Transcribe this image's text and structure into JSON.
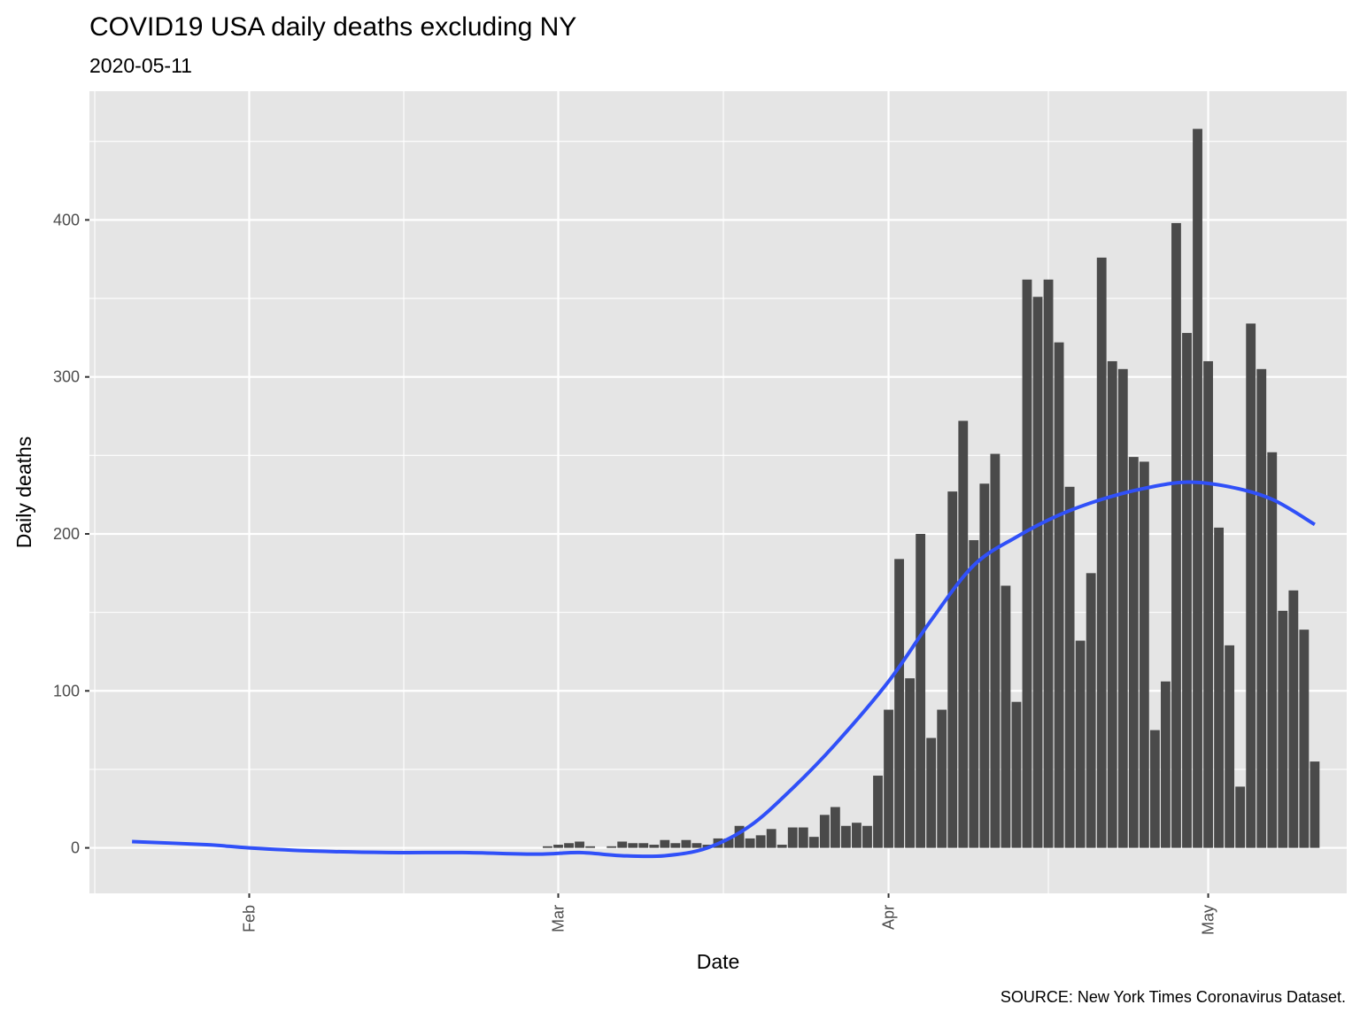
{
  "chart_data": {
    "type": "bar",
    "title": "COVID19 USA daily deaths excluding NY",
    "subtitle": "2020-05-11",
    "xlabel": "Date",
    "ylabel": "Daily deaths",
    "caption": "SOURCE: New York Times Coronavirus Dataset.",
    "x_ticks": [
      {
        "label": "Feb",
        "date": "2020-02-01"
      },
      {
        "label": "Mar",
        "date": "2020-03-01"
      },
      {
        "label": "Apr",
        "date": "2020-04-01"
      },
      {
        "label": "May",
        "date": "2020-05-01"
      }
    ],
    "y_ticks": [
      0,
      100,
      200,
      300,
      400
    ],
    "ylim": [
      -29,
      482
    ],
    "xlim": [
      "2020-01-17",
      "2020-05-14"
    ],
    "grid": true,
    "colors": {
      "panel": "#e5e5e5",
      "grid": "#ffffff",
      "bar": "#4a4a4a",
      "smooth": "#3050f8"
    },
    "series": [
      {
        "kind": "bar",
        "points": [
          {
            "x": "2020-02-29",
            "y": 1
          },
          {
            "x": "2020-03-01",
            "y": 2
          },
          {
            "x": "2020-03-02",
            "y": 3
          },
          {
            "x": "2020-03-03",
            "y": 4
          },
          {
            "x": "2020-03-04",
            "y": 1
          },
          {
            "x": "2020-03-05",
            "y": 0
          },
          {
            "x": "2020-03-06",
            "y": 1
          },
          {
            "x": "2020-03-07",
            "y": 4
          },
          {
            "x": "2020-03-08",
            "y": 3
          },
          {
            "x": "2020-03-09",
            "y": 3
          },
          {
            "x": "2020-03-10",
            "y": 2
          },
          {
            "x": "2020-03-11",
            "y": 5
          },
          {
            "x": "2020-03-12",
            "y": 3
          },
          {
            "x": "2020-03-13",
            "y": 5
          },
          {
            "x": "2020-03-14",
            "y": 3
          },
          {
            "x": "2020-03-15",
            "y": 2
          },
          {
            "x": "2020-03-16",
            "y": 6
          },
          {
            "x": "2020-03-17",
            "y": 6
          },
          {
            "x": "2020-03-18",
            "y": 14
          },
          {
            "x": "2020-03-19",
            "y": 6
          },
          {
            "x": "2020-03-20",
            "y": 8
          },
          {
            "x": "2020-03-21",
            "y": 12
          },
          {
            "x": "2020-03-22",
            "y": 2
          },
          {
            "x": "2020-03-23",
            "y": 13
          },
          {
            "x": "2020-03-24",
            "y": 13
          },
          {
            "x": "2020-03-25",
            "y": 7
          },
          {
            "x": "2020-03-26",
            "y": 21
          },
          {
            "x": "2020-03-27",
            "y": 26
          },
          {
            "x": "2020-03-28",
            "y": 14
          },
          {
            "x": "2020-03-29",
            "y": 16
          },
          {
            "x": "2020-03-30",
            "y": 14
          },
          {
            "x": "2020-03-31",
            "y": 46
          },
          {
            "x": "2020-04-01",
            "y": 88
          },
          {
            "x": "2020-04-02",
            "y": 184
          },
          {
            "x": "2020-04-03",
            "y": 108
          },
          {
            "x": "2020-04-04",
            "y": 200
          },
          {
            "x": "2020-04-05",
            "y": 70
          },
          {
            "x": "2020-04-06",
            "y": 88
          },
          {
            "x": "2020-04-07",
            "y": 227
          },
          {
            "x": "2020-04-08",
            "y": 272
          },
          {
            "x": "2020-04-09",
            "y": 196
          },
          {
            "x": "2020-04-10",
            "y": 232
          },
          {
            "x": "2020-04-11",
            "y": 251
          },
          {
            "x": "2020-04-12",
            "y": 167
          },
          {
            "x": "2020-04-13",
            "y": 93
          },
          {
            "x": "2020-04-14",
            "y": 362
          },
          {
            "x": "2020-04-15",
            "y": 351
          },
          {
            "x": "2020-04-16",
            "y": 362
          },
          {
            "x": "2020-04-17",
            "y": 322
          },
          {
            "x": "2020-04-18",
            "y": 230
          },
          {
            "x": "2020-04-19",
            "y": 132
          },
          {
            "x": "2020-04-20",
            "y": 175
          },
          {
            "x": "2020-04-21",
            "y": 376
          },
          {
            "x": "2020-04-22",
            "y": 310
          },
          {
            "x": "2020-04-23",
            "y": 305
          },
          {
            "x": "2020-04-24",
            "y": 249
          },
          {
            "x": "2020-04-25",
            "y": 246
          },
          {
            "x": "2020-04-26",
            "y": 75
          },
          {
            "x": "2020-04-27",
            "y": 106
          },
          {
            "x": "2020-04-28",
            "y": 398
          },
          {
            "x": "2020-04-29",
            "y": 328
          },
          {
            "x": "2020-04-30",
            "y": 458
          },
          {
            "x": "2020-05-01",
            "y": 310
          },
          {
            "x": "2020-05-02",
            "y": 204
          },
          {
            "x": "2020-05-03",
            "y": 129
          },
          {
            "x": "2020-05-04",
            "y": 39
          },
          {
            "x": "2020-05-05",
            "y": 334
          },
          {
            "x": "2020-05-06",
            "y": 305
          },
          {
            "x": "2020-05-07",
            "y": 252
          },
          {
            "x": "2020-05-08",
            "y": 151
          },
          {
            "x": "2020-05-09",
            "y": 164
          },
          {
            "x": "2020-05-10",
            "y": 139
          },
          {
            "x": "2020-05-11",
            "y": 55
          }
        ]
      },
      {
        "kind": "smooth-line",
        "points": [
          {
            "x": "2020-01-21",
            "y": 4
          },
          {
            "x": "2020-01-28",
            "y": 2
          },
          {
            "x": "2020-02-01",
            "y": 0
          },
          {
            "x": "2020-02-07",
            "y": -2
          },
          {
            "x": "2020-02-14",
            "y": -3
          },
          {
            "x": "2020-02-21",
            "y": -3
          },
          {
            "x": "2020-02-28",
            "y": -4
          },
          {
            "x": "2020-03-03",
            "y": -3
          },
          {
            "x": "2020-03-07",
            "y": -5
          },
          {
            "x": "2020-03-11",
            "y": -5
          },
          {
            "x": "2020-03-15",
            "y": 0
          },
          {
            "x": "2020-03-19",
            "y": 14
          },
          {
            "x": "2020-03-23",
            "y": 38
          },
          {
            "x": "2020-03-27",
            "y": 66
          },
          {
            "x": "2020-04-01",
            "y": 106
          },
          {
            "x": "2020-04-05",
            "y": 145
          },
          {
            "x": "2020-04-09",
            "y": 180
          },
          {
            "x": "2020-04-13",
            "y": 198
          },
          {
            "x": "2020-04-17",
            "y": 212
          },
          {
            "x": "2020-04-21",
            "y": 222
          },
          {
            "x": "2020-04-25",
            "y": 229
          },
          {
            "x": "2020-04-29",
            "y": 233
          },
          {
            "x": "2020-05-03",
            "y": 230
          },
          {
            "x": "2020-05-07",
            "y": 222
          },
          {
            "x": "2020-05-11",
            "y": 206
          }
        ]
      }
    ]
  }
}
